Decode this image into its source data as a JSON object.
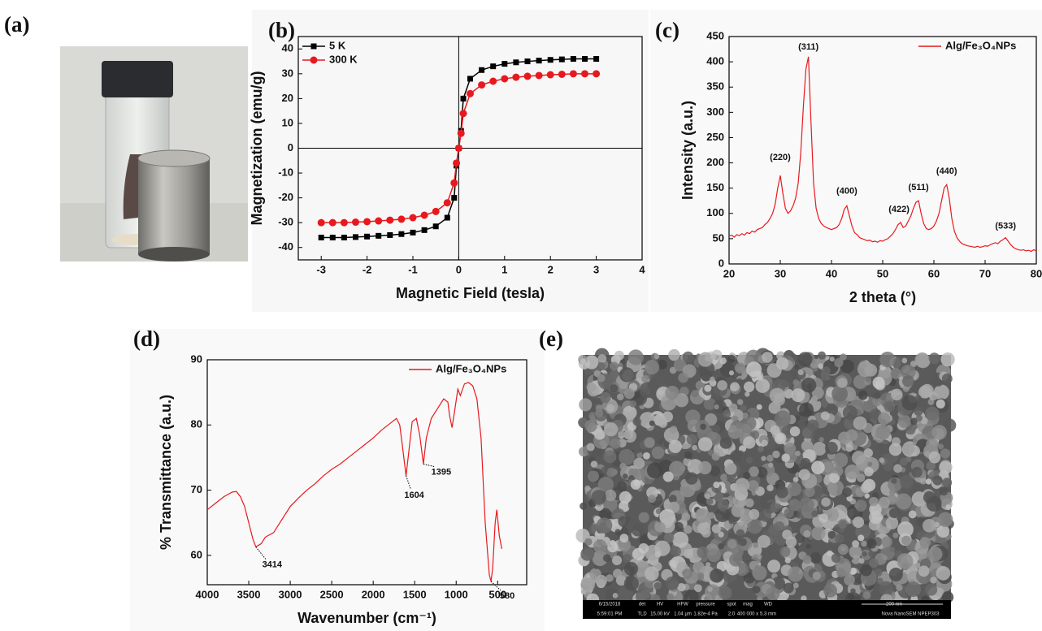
{
  "panel_labels": [
    "(a)",
    "(b)",
    "(c)",
    "(d)",
    "(e)"
  ],
  "chart_data": [
    {
      "type": "line",
      "markers": true,
      "legend": "upper left",
      "zero_lines": true,
      "xlabel": "Magnetic Field (tesla)",
      "ylabel": "Magnetization (emu/g)",
      "xlim": [
        -3.5,
        4
      ],
      "xticks": [
        -3,
        -2,
        -1,
        0,
        1,
        2,
        3,
        4
      ],
      "ylim": [
        -45,
        45
      ],
      "yticks": [
        -40,
        -30,
        -20,
        -10,
        0,
        10,
        20,
        30,
        40
      ],
      "x": [
        -3,
        -2.75,
        -2.5,
        -2.25,
        -2,
        -1.75,
        -1.5,
        -1.25,
        -1,
        -0.75,
        -0.5,
        -0.25,
        -0.1,
        -0.05,
        0,
        0.05,
        0.1,
        0.25,
        0.5,
        0.75,
        1,
        1.25,
        1.5,
        1.75,
        2,
        2.25,
        2.5,
        2.75,
        3
      ],
      "series": [
        {
          "name": "5 K",
          "color": "#000000",
          "marker": "square",
          "values": [
            -36,
            -36,
            -36,
            -35.8,
            -35.6,
            -35.3,
            -35,
            -34.6,
            -34,
            -33,
            -31.5,
            -28,
            -20,
            -7,
            0,
            7,
            20,
            28,
            31.5,
            33,
            34,
            34.6,
            35,
            35.3,
            35.6,
            35.8,
            36,
            36,
            36
          ]
        },
        {
          "name": "300 K",
          "color": "#e8191e",
          "marker": "circle",
          "values": [
            -30,
            -30,
            -30,
            -29.8,
            -29.6,
            -29.3,
            -29,
            -28.6,
            -28,
            -27,
            -25.5,
            -22,
            -14,
            -6,
            0,
            6,
            14,
            22,
            25.5,
            27,
            28,
            28.6,
            29,
            29.3,
            29.6,
            29.8,
            30,
            30,
            30
          ]
        }
      ]
    },
    {
      "type": "line",
      "markers": false,
      "legend": "upper right",
      "xlabel": "2 theta (°)",
      "ylabel": "Intensity (a.u.)",
      "xlim": [
        20,
        80
      ],
      "xticks": [
        20,
        30,
        40,
        50,
        60,
        70,
        80
      ],
      "ylim": [
        0,
        450
      ],
      "yticks": [
        0,
        50,
        100,
        150,
        200,
        250,
        300,
        350,
        400,
        450
      ],
      "x": [
        20,
        20.5,
        21,
        21.5,
        22,
        22.5,
        23,
        23.5,
        24,
        24.5,
        25,
        25.5,
        26,
        26.5,
        27,
        27.5,
        28,
        28.5,
        29,
        29.5,
        30,
        30.5,
        31,
        31.5,
        32,
        32.5,
        33,
        33.5,
        34,
        34.5,
        35,
        35.5,
        36,
        36.5,
        37,
        37.5,
        38,
        38.5,
        39,
        39.5,
        40,
        40.5,
        41,
        41.5,
        42,
        42.5,
        43,
        43.5,
        44,
        44.5,
        45,
        45.5,
        46,
        46.5,
        47,
        47.5,
        48,
        48.5,
        49,
        49.5,
        50,
        50.5,
        51,
        51.5,
        52,
        52.5,
        53,
        53.5,
        54,
        54.5,
        55,
        55.5,
        56,
        56.5,
        57,
        57.5,
        58,
        58.5,
        59,
        59.5,
        60,
        60.5,
        61,
        61.5,
        62,
        62.5,
        63,
        63.5,
        64,
        64.5,
        65,
        65.5,
        66,
        66.5,
        67,
        67.5,
        68,
        68.5,
        69,
        69.5,
        70,
        70.5,
        71,
        71.5,
        72,
        72.5,
        73,
        73.5,
        74,
        74.5,
        75,
        75.5,
        76,
        76.5,
        77,
        77.5,
        78,
        78.5,
        79,
        79.5,
        80
      ],
      "series": [
        {
          "name": "Alg/Fe₃O₄NPs",
          "color": "#e8191e",
          "values": [
            55,
            57,
            53,
            58,
            56,
            60,
            57,
            62,
            60,
            65,
            63,
            68,
            70,
            72,
            78,
            82,
            90,
            100,
            118,
            150,
            175,
            140,
            110,
            100,
            105,
            115,
            130,
            160,
            220,
            310,
            385,
            410,
            280,
            160,
            110,
            90,
            80,
            75,
            72,
            70,
            68,
            70,
            72,
            78,
            90,
            108,
            115,
            95,
            75,
            62,
            58,
            52,
            50,
            48,
            46,
            47,
            44,
            45,
            43,
            46,
            45,
            48,
            50,
            55,
            60,
            68,
            78,
            82,
            72,
            75,
            85,
            95,
            110,
            122,
            125,
            100,
            80,
            70,
            68,
            70,
            75,
            85,
            100,
            125,
            150,
            157,
            130,
            90,
            65,
            52,
            45,
            40,
            38,
            36,
            35,
            34,
            33,
            35,
            33,
            34,
            36,
            35,
            38,
            40,
            42,
            40,
            45,
            48,
            52,
            45,
            38,
            33,
            30,
            28,
            27,
            28,
            26,
            27,
            25,
            28,
            26
          ]
        }
      ],
      "annotations": [
        {
          "text": "(220)",
          "x": 30,
          "y": 175
        },
        {
          "text": "(311)",
          "x": 35.5,
          "y": 410
        },
        {
          "text": "(400)",
          "x": 43,
          "y": 115
        },
        {
          "text": "(422)",
          "x": 53.5,
          "y": 82
        },
        {
          "text": "(511)",
          "x": 57,
          "y": 125
        },
        {
          "text": "(440)",
          "x": 62.5,
          "y": 157
        },
        {
          "text": "(533)",
          "x": 74,
          "y": 52
        }
      ]
    },
    {
      "type": "line",
      "markers": false,
      "legend": "upper right",
      "xlabel": "Wavenumber (cm⁻¹)",
      "ylabel": "% Transmittance (a.u.)",
      "xlim": [
        4000,
        150
      ],
      "xticks": [
        4000,
        3500,
        3000,
        2500,
        2000,
        1500,
        1000,
        500
      ],
      "ylim": [
        55.5,
        90
      ],
      "yticks": [
        60,
        70,
        80,
        90
      ],
      "x": [
        4000,
        3900,
        3800,
        3700,
        3650,
        3600,
        3550,
        3500,
        3450,
        3414,
        3350,
        3300,
        3200,
        3100,
        3000,
        2900,
        2800,
        2700,
        2600,
        2500,
        2400,
        2300,
        2200,
        2100,
        2000,
        1900,
        1800,
        1720,
        1680,
        1650,
        1604,
        1570,
        1530,
        1480,
        1440,
        1395,
        1360,
        1300,
        1200,
        1150,
        1100,
        1080,
        1050,
        1020,
        980,
        950,
        900,
        850,
        800,
        750,
        700,
        650,
        600,
        580,
        560,
        530,
        510,
        480,
        450
      ],
      "series": [
        {
          "name": "Alg/Fe₃O₄NPs",
          "color": "#e8191e",
          "values": [
            67,
            68,
            69,
            69.7,
            69.8,
            69,
            67.5,
            65,
            62.5,
            61.3,
            61.8,
            62.8,
            63.5,
            65.5,
            67.5,
            68.8,
            70,
            71,
            72.2,
            73.2,
            74,
            75,
            76,
            77,
            78,
            79.2,
            80.2,
            81,
            80,
            77,
            72.2,
            76,
            80.5,
            81,
            78.5,
            74,
            78,
            81,
            83,
            84,
            83.5,
            81.5,
            79.6,
            82,
            85.5,
            84.5,
            86.3,
            86.5,
            86,
            84,
            78,
            65,
            57,
            56,
            58,
            65,
            67,
            63,
            61
          ]
        }
      ],
      "annotations": [
        {
          "text": "3414",
          "x": 3414,
          "y": 61.3
        },
        {
          "text": "1604",
          "x": 1604,
          "y": 72.2
        },
        {
          "text": "1395",
          "x": 1395,
          "y": 74
        },
        {
          "text": "580",
          "x": 580,
          "y": 56
        }
      ]
    }
  ],
  "sem_info": [
    "6/15/2018",
    "5:59:01 PM",
    "det",
    "TLD",
    "HV",
    "15.00 kV",
    "HFW",
    "1.04 µm",
    "pressure",
    "1.82e-4 Pa",
    "spot",
    "2.0",
    "mag",
    "400 000 x",
    "WD",
    "5.3 mm",
    "200 nm",
    "Nova NanoSEM NPEP303"
  ]
}
